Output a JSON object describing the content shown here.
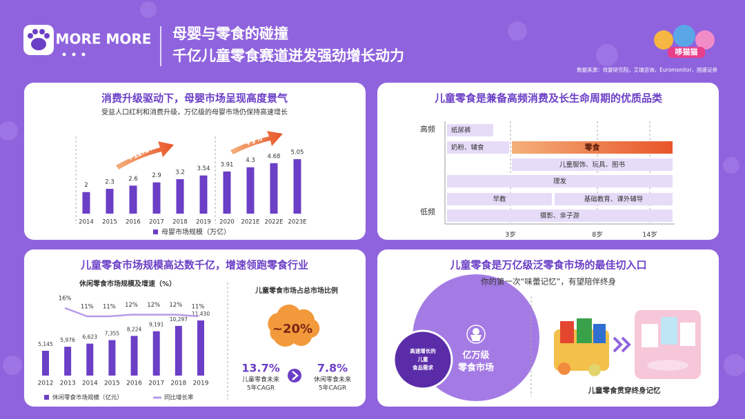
{
  "header": {
    "brand": "MORE MORE",
    "title_lines": [
      "母婴与零食的碰撞",
      "千亿儿童零食赛道迸发强劲增长动力"
    ],
    "logo_text": "哆猫猫",
    "source": "数据来源：母婴研究院，艾瑞咨询，Euromonitor，国盛证券"
  },
  "chart_data": [
    {
      "type": "bar",
      "title": "消费升级驱动下，母婴市场呈现高度景气",
      "subtitle": "受益人口红利和消费升级，万亿级的母婴市场仍保持高速增长",
      "categories": [
        "2014",
        "2015",
        "2016",
        "2017",
        "2018",
        "2019",
        "2020",
        "2021E",
        "2022E",
        "2023E"
      ],
      "series": [
        {
          "name": "母婴市场规模（万亿）",
          "color": "#6b3fc6",
          "values": [
            2,
            2.3,
            2.6,
            2.9,
            3.2,
            3.54,
            3.91,
            4.3,
            4.68,
            5.05
          ]
        }
      ],
      "annotations": [
        "+12.1%",
        "+9%"
      ]
    },
    {
      "type": "bar_line",
      "title": "儿童零食市场规模高达数千亿，增速领跑零食行业",
      "subtitle": "休闲零食市场规模及增速（%）",
      "categories": [
        "2012",
        "2013",
        "2014",
        "2015",
        "2016",
        "2017",
        "2018",
        "2019"
      ],
      "series": [
        {
          "name": "休闲零食市场规模（亿元）",
          "type": "bar",
          "color": "#6b3fc6",
          "values": [
            5145,
            5976,
            6623,
            7355,
            8224,
            9191,
            10297,
            11430
          ],
          "value_labels": [
            "5,145",
            "5,976",
            "6,623",
            "7,355",
            "8,224",
            "9,191",
            "10,297",
            "11,430"
          ]
        },
        {
          "name": "同比增长率",
          "type": "line",
          "color": "#b79ae8",
          "values": [
            null,
            16,
            11,
            11,
            12,
            12,
            12,
            11
          ],
          "value_labels": [
            null,
            "16%",
            "11%",
            "11%",
            "12%",
            "12%",
            "12%",
            "11%"
          ]
        }
      ]
    }
  ],
  "age_chart": {
    "title": "儿童零食是兼备高频消费及长生命周期的优质品类",
    "y_labels": [
      "高频",
      "低频"
    ],
    "x_labels": [
      "3岁",
      "8岁",
      "14岁"
    ],
    "items": [
      "纸尿裤",
      "奶粉、辅食",
      "零食",
      "儿童服饰、玩具、图书",
      "理发",
      "早教",
      "基础教育、课外辅导",
      "摄影、亲子游"
    ]
  },
  "share_panel": {
    "title": "儿童零食市场占总市场比例",
    "share": "~20%",
    "cagr": [
      {
        "value": "13.7%",
        "label_lines": [
          "儿童零食未来",
          "5年CAGR"
        ]
      },
      {
        "value": "7.8%",
        "label_lines": [
          "休闲零食未来",
          "5年CAGR"
        ]
      }
    ]
  },
  "entry_panel": {
    "title": "儿童零食是万亿级泛零食市场的最佳切入口",
    "subtitle": "你的第一次“味蕾记忆”，有望陪伴终身",
    "inner_circle_lines": [
      "高速增长的",
      "儿童",
      "食品需求"
    ],
    "outer_circle_lines": [
      "亿万级",
      "零食市场"
    ],
    "caption": "儿童零食贯穿终身记忆"
  }
}
